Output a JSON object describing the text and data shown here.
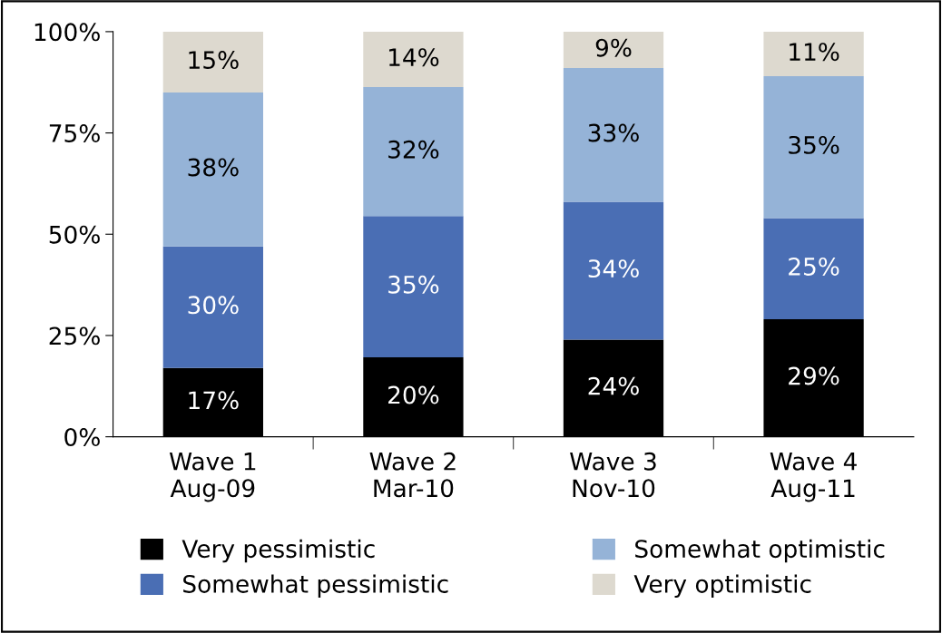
{
  "chart_data": {
    "type": "bar",
    "stacked": true,
    "categories": [
      "Wave 1\nAug-09",
      "Wave 2\nMar-10",
      "Wave 3\nNov-10",
      "Wave 4\nAug-11"
    ],
    "ylim": [
      0,
      100
    ],
    "yticks": [
      {
        "value": 0,
        "label": "0%"
      },
      {
        "value": 25,
        "label": "25%"
      },
      {
        "value": 50,
        "label": "50%"
      },
      {
        "value": 75,
        "label": "75%"
      },
      {
        "value": 100,
        "label": "100%"
      }
    ],
    "grid": false,
    "legend": "bottom",
    "series": [
      {
        "name": "Very pessimistic",
        "color": "#000000",
        "values": [
          17,
          19.6,
          24,
          29
        ],
        "value_labels": [
          "17%",
          "20%",
          "24%",
          "29%"
        ]
      },
      {
        "name": "Somewhat pessimistic",
        "color": "#4a6eb4",
        "values": [
          30,
          34.9,
          34,
          25
        ],
        "value_labels": [
          "30%",
          "35%",
          "34%",
          "25%"
        ]
      },
      {
        "name": "Somewhat optimistic",
        "color": "#95b3d7",
        "values": [
          38,
          31.8,
          33,
          35
        ],
        "value_labels": [
          "38%",
          "32%",
          "33%",
          "35%"
        ]
      },
      {
        "name": "Very optimistic",
        "color": "#ddd9cf",
        "values": [
          15,
          13.7,
          9,
          11
        ],
        "value_labels": [
          "15%",
          "14%",
          "9%",
          "11%"
        ]
      }
    ]
  }
}
